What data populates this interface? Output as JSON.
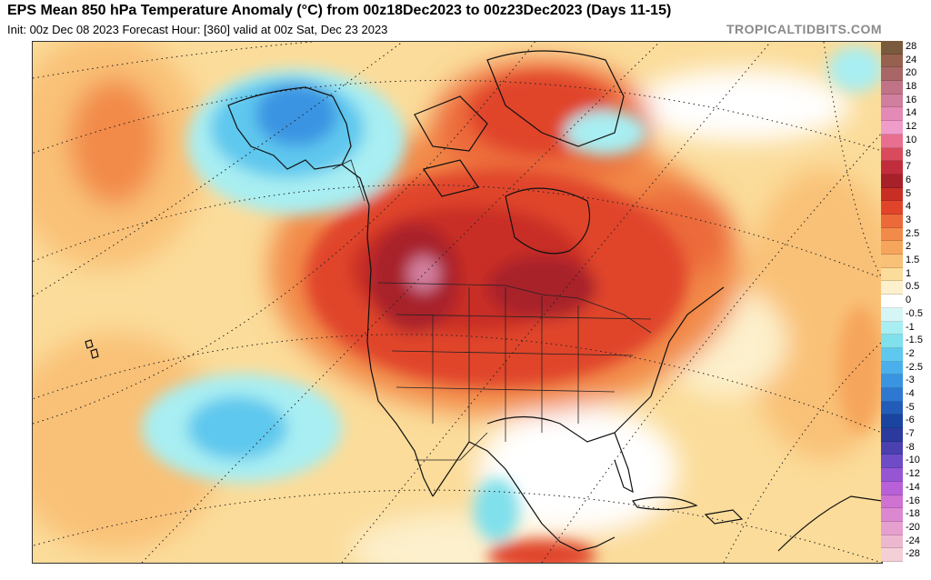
{
  "header": {
    "title": "EPS Mean 850 hPa Temperature Anomaly (°C) from 00z18Dec2023 to 00z23Dec2023 (Days 11-15)",
    "subtitle": "Init: 00z Dec 08 2023   Forecast Hour: [360]   valid at 00z Sat, Dec 23 2023",
    "brand": "TROPICALTIDBITS.COM"
  },
  "map": {
    "region": "North America",
    "projection": "polar stereographic",
    "field": "850 hPa temperature anomaly"
  },
  "colorbar": {
    "unit": "°C",
    "levels": [
      {
        "label": "28",
        "color": "#7a5a3c"
      },
      {
        "label": "24",
        "color": "#96614f"
      },
      {
        "label": "20",
        "color": "#a86666"
      },
      {
        "label": "18",
        "color": "#c07287"
      },
      {
        "label": "16",
        "color": "#d17f9e"
      },
      {
        "label": "14",
        "color": "#e48ab6"
      },
      {
        "label": "12",
        "color": "#f09ccb"
      },
      {
        "label": "10",
        "color": "#e86f8f"
      },
      {
        "label": "8",
        "color": "#d94b5c"
      },
      {
        "label": "7",
        "color": "#c22d3b"
      },
      {
        "label": "6",
        "color": "#a8202a"
      },
      {
        "label": "5",
        "color": "#c92e25"
      },
      {
        "label": "4",
        "color": "#e0452c"
      },
      {
        "label": "3",
        "color": "#ec6a3a"
      },
      {
        "label": "2.5",
        "color": "#f28a4a"
      },
      {
        "label": "2",
        "color": "#f6a65c"
      },
      {
        "label": "1.5",
        "color": "#f9c177"
      },
      {
        "label": "1",
        "color": "#fbdc9a"
      },
      {
        "label": "0.5",
        "color": "#fdf0cc"
      },
      {
        "label": "0",
        "color": "#ffffff"
      },
      {
        "label": "-0.5",
        "color": "#d6f6f6"
      },
      {
        "label": "-1",
        "color": "#a8eef2"
      },
      {
        "label": "-1.5",
        "color": "#80e0ec"
      },
      {
        "label": "-2",
        "color": "#5ec8ee"
      },
      {
        "label": "-2.5",
        "color": "#4ab0ec"
      },
      {
        "label": "-3",
        "color": "#3a94e2"
      },
      {
        "label": "-4",
        "color": "#2e78d2"
      },
      {
        "label": "-5",
        "color": "#235cb8"
      },
      {
        "label": "-6",
        "color": "#1a44a0"
      },
      {
        "label": "-7",
        "color": "#2c3a9e"
      },
      {
        "label": "-8",
        "color": "#4a40b0"
      },
      {
        "label": "-10",
        "color": "#6e4cc6"
      },
      {
        "label": "-12",
        "color": "#9656d4"
      },
      {
        "label": "-14",
        "color": "#b860d8"
      },
      {
        "label": "-16",
        "color": "#cf72d2"
      },
      {
        "label": "-18",
        "color": "#dc88d0"
      },
      {
        "label": "-20",
        "color": "#e6a0cf"
      },
      {
        "label": "-24",
        "color": "#edb8cf"
      },
      {
        "label": "-28",
        "color": "#f4cfd6"
      }
    ]
  }
}
